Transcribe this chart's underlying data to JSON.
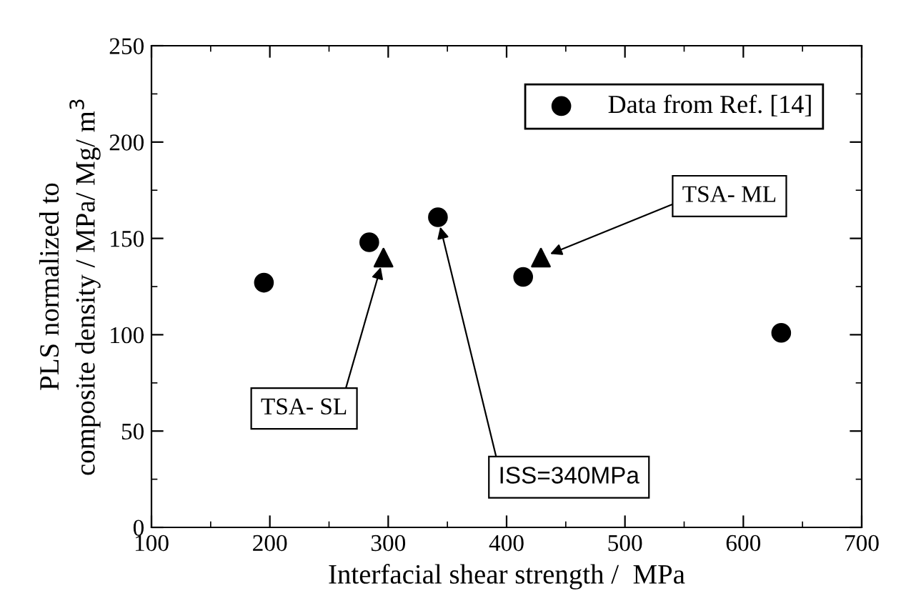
{
  "chart_data": {
    "type": "scatter",
    "xlabel": "Interfacial shear strength /  MPa",
    "ylabel": "PLS normalized to\ncomposite density / MPa/ Mg/ m$^{3}$",
    "series": [
      {
        "name": "Data from Ref. [14]",
        "color": "#000000",
        "marker": "circle",
        "x": [
          195,
          284,
          342,
          414,
          632
        ],
        "values": [
          127,
          148,
          161,
          130,
          101
        ]
      },
      {
        "color": "#000000",
        "marker": "triangle",
        "x": [
          296,
          429
        ],
        "values": [
          140,
          140
        ]
      }
    ],
    "xlim": [
      100,
      700
    ],
    "xticks": [
      100,
      200,
      300,
      400,
      500,
      600,
      700
    ],
    "ylim": [
      0,
      250
    ],
    "yticks": [
      0,
      50,
      100,
      150,
      200,
      250
    ],
    "grid": false,
    "legend": "top right",
    "annotations": [
      {
        "text": "TSA- SL",
        "x": 296,
        "y": 140
      },
      {
        "text": "ISS=340MPa",
        "x": 342,
        "y": 161
      },
      {
        "text": "TSA- ML",
        "x": 429,
        "y": 140
      }
    ]
  }
}
